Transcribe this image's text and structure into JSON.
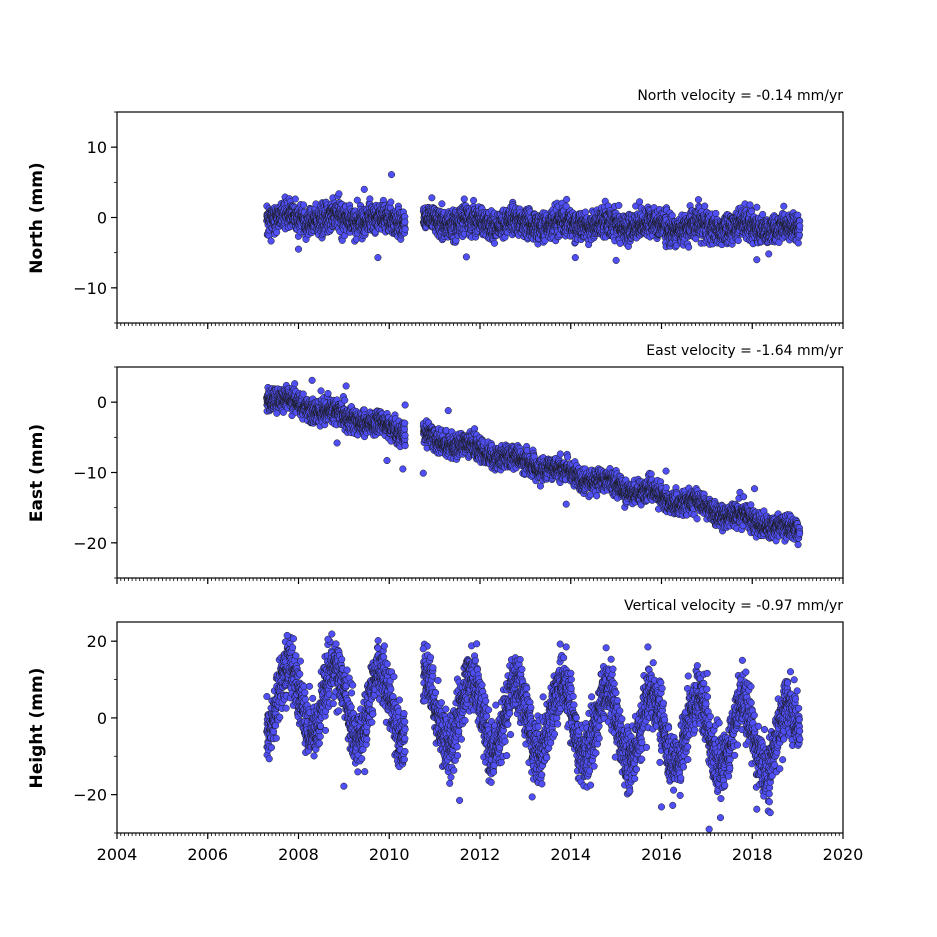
{
  "chart_data": [
    {
      "type": "scatter",
      "title": "North velocity = -0.14 mm/yr",
      "xlabel": "",
      "ylabel": "North (mm)",
      "xlim": [
        2004,
        2020
      ],
      "ylim": [
        -15,
        15
      ],
      "xticks": [
        2004,
        2006,
        2008,
        2010,
        2012,
        2014,
        2016,
        2018,
        2020
      ],
      "yticks": [
        -10,
        0,
        10
      ],
      "show_x_tick_labels": false,
      "series_color": "#4f4ff5",
      "edge_color": "#1a1a1a",
      "gap": [
        2010.35,
        2010.75
      ],
      "points": {
        "x_range": [
          2007.3,
          2019.05
        ],
        "trend": {
          "slope": -0.14,
          "ref_year": 2007.3,
          "intercept": 0.0
        },
        "seasonal_amplitude": 0.5,
        "scatter": 1.0,
        "outliers": [
          [
            2010.05,
            6.1
          ],
          [
            2009.45,
            4.0
          ],
          [
            2009.75,
            -5.7
          ],
          [
            2011.7,
            -5.6
          ],
          [
            2014.1,
            -5.7
          ],
          [
            2015.0,
            -6.1
          ],
          [
            2018.1,
            -6.0
          ],
          [
            2008.0,
            -4.5
          ],
          [
            2017.95,
            1.8
          ],
          [
            2013.9,
            1.6
          ]
        ]
      }
    },
    {
      "type": "scatter",
      "title": "East velocity = -1.64 mm/yr",
      "xlabel": "",
      "ylabel": "East (mm)",
      "xlim": [
        2004,
        2020
      ],
      "ylim": [
        -25,
        5
      ],
      "xticks": [
        2004,
        2006,
        2008,
        2010,
        2012,
        2014,
        2016,
        2018,
        2020
      ],
      "yticks": [
        -20,
        -10,
        0
      ],
      "show_x_tick_labels": false,
      "series_color": "#4f4ff5",
      "edge_color": "#1a1a1a",
      "gap": [
        2010.35,
        2010.75
      ],
      "points": {
        "x_range": [
          2007.3,
          2019.05
        ],
        "trend": {
          "slope": -1.64,
          "ref_year": 2007.3,
          "intercept": 0.8
        },
        "seasonal_amplitude": 0.5,
        "scatter": 0.8,
        "outliers": [
          [
            2008.85,
            -5.8
          ],
          [
            2009.95,
            -8.3
          ],
          [
            2010.3,
            -9.5
          ],
          [
            2010.75,
            -10.1
          ],
          [
            2013.9,
            -14.5
          ],
          [
            2016.1,
            -9.8
          ],
          [
            2018.05,
            -12.3
          ],
          [
            2008.3,
            3.1
          ],
          [
            2009.05,
            2.3
          ],
          [
            2011.3,
            -1.2
          ],
          [
            2010.35,
            -0.4
          ]
        ]
      }
    },
    {
      "type": "scatter",
      "title": "Vertical velocity = -0.97 mm/yr",
      "xlabel": "",
      "ylabel": "Height (mm)",
      "xlim": [
        2004,
        2020
      ],
      "ylim": [
        -30,
        25
      ],
      "xticks": [
        2004,
        2006,
        2008,
        2010,
        2012,
        2014,
        2016,
        2018,
        2020
      ],
      "yticks": [
        -20,
        0,
        20
      ],
      "show_x_tick_labels": true,
      "series_color": "#4f4ff5",
      "edge_color": "#1a1a1a",
      "gap": [
        2010.35,
        2010.75
      ],
      "points": {
        "x_range": [
          2007.3,
          2019.05
        ],
        "trend": {
          "slope": -0.97,
          "ref_year": 2007.3,
          "intercept": 5.5
        },
        "seasonal_amplitude": 9.0,
        "scatter": 3.8,
        "outliers": [
          [
            2007.75,
            21.5
          ],
          [
            2008.65,
            20.5
          ],
          [
            2009.75,
            18.2
          ],
          [
            2010.75,
            18.0
          ],
          [
            2013.9,
            18.5
          ],
          [
            2015.7,
            18.5
          ],
          [
            2013.15,
            -20.6
          ],
          [
            2011.55,
            -21.5
          ],
          [
            2017.05,
            -29.0
          ],
          [
            2016.0,
            -23.2
          ],
          [
            2017.3,
            -26.0
          ],
          [
            2018.1,
            -23.8
          ],
          [
            2009.0,
            -17.8
          ]
        ]
      }
    }
  ]
}
